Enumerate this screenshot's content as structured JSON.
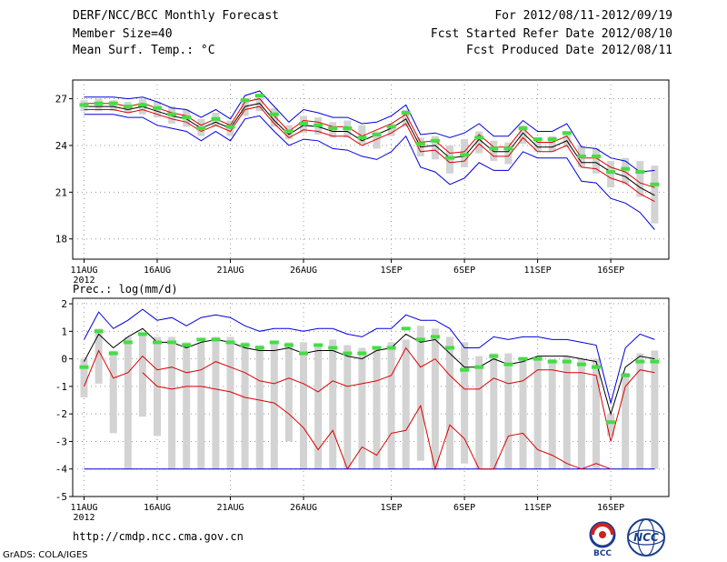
{
  "header": {
    "model": "DERF/NCC/BCC Monthly Forecast",
    "members": "Member Size=40",
    "variable": "Mean Surf. Temp.: °C",
    "period": "For 2012/08/11-2012/09/19",
    "refer_date": "Fcst Started Refer Date 2012/08/10",
    "produced_date": "Fcst Produced Date 2012/08/11"
  },
  "footer": {
    "url": "http://cmdp.ncc.cma.gov.cn",
    "credit": "GrADS: COLA/IGES",
    "logo_left_text": "BCC",
    "logo_right_text": "NCC"
  },
  "colors": {
    "box": "#d3d3d3",
    "median_mark": "#44dd44",
    "ensemble_mean": "#000000",
    "percentile_lines": "#dd0000",
    "envelope": "#0000dd",
    "grid": "#999999"
  },
  "chart_data": [
    {
      "type": "box",
      "title": "Mean Surf. Temp.: °C",
      "ylim": [
        16.7,
        28.2
      ],
      "yticks": [
        18,
        21,
        24,
        27
      ],
      "xtick_labels": [
        "11AUG",
        "16AUG",
        "21AUG",
        "26AUG",
        "1SEP",
        "6SEP",
        "11SEP",
        "16SEP"
      ],
      "xtick_days": [
        1,
        6,
        11,
        16,
        22,
        27,
        32,
        37
      ],
      "year_label": "2012",
      "days": 40,
      "series": [
        {
          "name": "box_top",
          "values": [
            26.9,
            27.0,
            26.9,
            26.8,
            27.0,
            26.8,
            26.5,
            26.3,
            25.7,
            26.1,
            25.6,
            26.8,
            27.3,
            26.4,
            25.3,
            25.9,
            25.8,
            25.5,
            25.6,
            25.3,
            24.9,
            25.4,
            26.3,
            24.5,
            24.6,
            24.0,
            24.4,
            24.9,
            24.3,
            24.2,
            25.3,
            24.5,
            24.6,
            24.9,
            24.0,
            23.8,
            23.0,
            23.2,
            23.0,
            22.7
          ]
        },
        {
          "name": "box_bottom",
          "values": [
            26.2,
            26.2,
            26.2,
            26.1,
            26.0,
            25.8,
            25.4,
            25.2,
            24.6,
            25.2,
            24.6,
            25.9,
            26.2,
            25.2,
            24.4,
            24.8,
            24.7,
            24.5,
            24.5,
            24.1,
            23.8,
            24.6,
            25.2,
            23.3,
            23.1,
            22.2,
            22.6,
            23.5,
            23.0,
            22.8,
            24.1,
            23.6,
            23.6,
            23.9,
            22.6,
            22.2,
            21.3,
            21.5,
            20.7,
            19.0
          ]
        },
        {
          "name": "median",
          "values": [
            26.6,
            26.7,
            26.7,
            26.5,
            26.6,
            26.4,
            26.0,
            25.8,
            25.1,
            25.7,
            25.2,
            26.9,
            27.2,
            26.0,
            24.9,
            25.4,
            25.3,
            25.1,
            25.1,
            24.5,
            24.7,
            25.2,
            26.1,
            24.1,
            24.3,
            23.2,
            23.4,
            24.5,
            23.8,
            23.8,
            25.1,
            24.4,
            24.4,
            24.8,
            23.3,
            23.3,
            22.3,
            22.5,
            22.3,
            21.5
          ]
        },
        {
          "name": "ensemble_mean",
          "values": [
            26.5,
            26.5,
            26.5,
            26.3,
            26.5,
            26.2,
            25.9,
            25.7,
            25.1,
            25.5,
            25.1,
            26.5,
            26.7,
            25.6,
            24.7,
            25.3,
            25.2,
            24.9,
            24.9,
            24.3,
            24.7,
            25.1,
            25.7,
            23.9,
            24.0,
            23.2,
            23.3,
            24.4,
            23.6,
            23.6,
            24.8,
            23.9,
            23.9,
            24.3,
            22.9,
            22.9,
            22.3,
            22.0,
            21.3,
            20.8
          ]
        },
        {
          "name": "upper_percentile",
          "values": [
            26.7,
            26.7,
            26.7,
            26.5,
            26.7,
            26.4,
            26.1,
            25.9,
            25.3,
            25.7,
            25.3,
            26.8,
            27.0,
            25.9,
            24.9,
            25.6,
            25.5,
            25.2,
            25.2,
            24.6,
            25.0,
            25.4,
            26.0,
            24.2,
            24.3,
            23.5,
            23.6,
            24.7,
            23.9,
            23.9,
            25.1,
            24.2,
            24.2,
            24.6,
            23.2,
            23.2,
            22.6,
            22.3,
            21.6,
            21.3
          ]
        },
        {
          "name": "lower_percentile",
          "values": [
            26.3,
            26.3,
            26.3,
            26.1,
            26.3,
            26.0,
            25.7,
            25.5,
            24.9,
            25.3,
            24.9,
            26.3,
            26.5,
            25.4,
            24.5,
            25.0,
            24.9,
            24.6,
            24.6,
            24.0,
            24.4,
            24.8,
            25.4,
            23.6,
            23.7,
            22.9,
            23.0,
            24.1,
            23.3,
            23.3,
            24.5,
            23.6,
            23.6,
            24.0,
            22.6,
            22.5,
            21.9,
            21.6,
            20.9,
            20.4
          ]
        },
        {
          "name": "upper_envelope",
          "values": [
            27.1,
            27.1,
            27.1,
            27.0,
            27.1,
            26.8,
            26.4,
            26.3,
            25.8,
            26.3,
            25.7,
            27.2,
            27.5,
            26.5,
            25.5,
            26.3,
            26.1,
            25.8,
            25.8,
            25.4,
            25.5,
            25.9,
            26.6,
            24.7,
            24.8,
            24.5,
            24.8,
            25.4,
            24.6,
            24.6,
            25.6,
            24.9,
            24.9,
            25.4,
            23.9,
            23.8,
            23.2,
            23.0,
            22.3,
            22.4
          ]
        },
        {
          "name": "lower_envelope",
          "values": [
            26.0,
            26.0,
            26.0,
            25.8,
            25.8,
            25.3,
            25.1,
            24.9,
            24.3,
            24.9,
            24.3,
            25.7,
            25.9,
            24.9,
            24.0,
            24.4,
            24.3,
            23.8,
            23.7,
            23.3,
            23.1,
            23.6,
            24.6,
            22.6,
            22.3,
            21.5,
            21.9,
            22.9,
            22.4,
            22.4,
            23.6,
            23.2,
            23.2,
            23.2,
            21.7,
            21.6,
            20.6,
            20.3,
            19.7,
            18.6
          ]
        }
      ]
    },
    {
      "type": "box",
      "title": "Prec.: log(mm/d)",
      "ylim": [
        -5,
        2.2
      ],
      "yticks": [
        2,
        1,
        0,
        -1,
        -2,
        -3,
        -4,
        -5
      ],
      "xtick_labels": [
        "11AUG",
        "16AUG",
        "21AUG",
        "26AUG",
        "1SEP",
        "6SEP",
        "11SEP",
        "16SEP"
      ],
      "xtick_days": [
        1,
        6,
        11,
        16,
        22,
        27,
        32,
        37
      ],
      "year_label": "2012",
      "days": 40,
      "series": [
        {
          "name": "box_top",
          "values": [
            0.0,
            1.1,
            0.3,
            0.8,
            0.9,
            0.8,
            0.8,
            0.6,
            0.6,
            0.8,
            0.8,
            0.6,
            0.5,
            0.6,
            0.6,
            0.6,
            0.5,
            0.7,
            0.5,
            0.4,
            0.4,
            0.6,
            0.7,
            1.2,
            1.1,
            0.8,
            0.6,
            0.1,
            0.2,
            0.2,
            0.0,
            0.1,
            0.0,
            0.1,
            0.0,
            0.0,
            -2.0,
            -0.5,
            0.2,
            0.3
          ]
        },
        {
          "name": "box_bottom",
          "values": [
            -1.4,
            -0.9,
            -2.7,
            -4.0,
            -2.1,
            -2.8,
            -4.0,
            -4.0,
            -4.0,
            -4.0,
            -4.0,
            -4.0,
            -4.0,
            -4.0,
            -3.0,
            -4.0,
            -4.0,
            -4.0,
            -4.0,
            -4.0,
            -4.0,
            -4.0,
            -4.0,
            -3.7,
            -4.0,
            -4.0,
            -3.8,
            -4.0,
            -4.0,
            -4.0,
            -4.0,
            -4.0,
            -4.0,
            -4.0,
            -4.0,
            -4.0,
            -2.8,
            -4.0,
            -4.0,
            -4.0
          ]
        },
        {
          "name": "median",
          "values": [
            -0.3,
            1.0,
            0.2,
            0.6,
            0.9,
            0.6,
            0.6,
            0.5,
            0.7,
            0.7,
            0.6,
            0.5,
            0.4,
            0.6,
            0.5,
            0.2,
            0.5,
            0.4,
            0.2,
            0.2,
            0.4,
            0.4,
            1.1,
            0.7,
            0.8,
            0.4,
            -0.4,
            -0.3,
            0.1,
            -0.2,
            0.0,
            0.0,
            -0.1,
            -0.1,
            -0.2,
            -0.3,
            -2.3,
            -0.6,
            -0.1,
            -0.1
          ]
        },
        {
          "name": "ensemble_mean",
          "values": [
            -0.1,
            0.9,
            0.4,
            0.8,
            1.1,
            0.6,
            0.6,
            0.4,
            0.6,
            0.7,
            0.6,
            0.4,
            0.3,
            0.3,
            0.4,
            0.2,
            0.3,
            0.3,
            0.1,
            0.0,
            0.3,
            0.4,
            0.9,
            0.6,
            0.7,
            0.2,
            -0.3,
            -0.3,
            0.0,
            -0.2,
            -0.1,
            0.1,
            0.1,
            0.1,
            0.0,
            -0.1,
            -2.0,
            -0.3,
            0.1,
            0.0
          ]
        },
        {
          "name": "upper_percentile",
          "values": [
            -1.0,
            0.3,
            -0.7,
            -0.5,
            0.1,
            -0.4,
            -0.3,
            -0.5,
            -0.4,
            -0.1,
            -0.3,
            -0.5,
            -0.8,
            -0.9,
            -0.7,
            -0.9,
            -1.2,
            -0.8,
            -1.0,
            -0.9,
            -0.8,
            -0.6,
            0.4,
            -0.3,
            0.0,
            -0.6,
            -1.1,
            -1.1,
            -0.7,
            -0.9,
            -0.8,
            -0.4,
            -0.4,
            -0.5,
            -0.5,
            -0.6,
            -3.0,
            -1.0,
            -0.4,
            -0.5
          ]
        },
        {
          "name": "lower_percentile",
          "values": [
            null,
            null,
            null,
            null,
            -0.5,
            -1.0,
            -1.1,
            -1.0,
            -1.0,
            -1.1,
            -1.2,
            -1.4,
            -1.5,
            -1.6,
            -2.0,
            -2.5,
            -3.3,
            -2.6,
            -4.0,
            -3.2,
            -3.5,
            -2.7,
            -2.6,
            -1.7,
            -4.0,
            -2.4,
            -2.9,
            -4.0,
            -4.0,
            -2.8,
            -2.7,
            -3.3,
            -3.5,
            -3.8,
            -4.0,
            -3.8,
            -4.0,
            null,
            null,
            null
          ]
        },
        {
          "name": "upper_envelope",
          "values": [
            0.7,
            1.7,
            1.1,
            1.4,
            1.8,
            1.4,
            1.5,
            1.2,
            1.5,
            1.6,
            1.5,
            1.2,
            1.0,
            1.1,
            1.1,
            1.0,
            1.1,
            1.1,
            0.9,
            0.8,
            1.1,
            1.1,
            1.6,
            1.4,
            1.4,
            1.1,
            0.4,
            0.4,
            0.8,
            0.7,
            0.8,
            0.8,
            0.7,
            0.7,
            0.6,
            0.5,
            -1.6,
            0.4,
            0.9,
            0.7
          ]
        },
        {
          "name": "lower_envelope",
          "values": [
            -4.0,
            -4.0,
            -4.0,
            -4.0,
            -4.0,
            -4.0,
            -4.0,
            -4.0,
            -4.0,
            -4.0,
            -4.0,
            -4.0,
            -4.0,
            -4.0,
            -4.0,
            -4.0,
            -4.0,
            -4.0,
            -4.0,
            -4.0,
            -4.0,
            -4.0,
            -4.0,
            -4.0,
            -4.0,
            -4.0,
            -4.0,
            -4.0,
            -4.0,
            -4.0,
            -4.0,
            -4.0,
            -4.0,
            -4.0,
            -4.0,
            -4.0,
            -4.0,
            -4.0,
            -4.0,
            -4.0
          ]
        }
      ]
    }
  ]
}
